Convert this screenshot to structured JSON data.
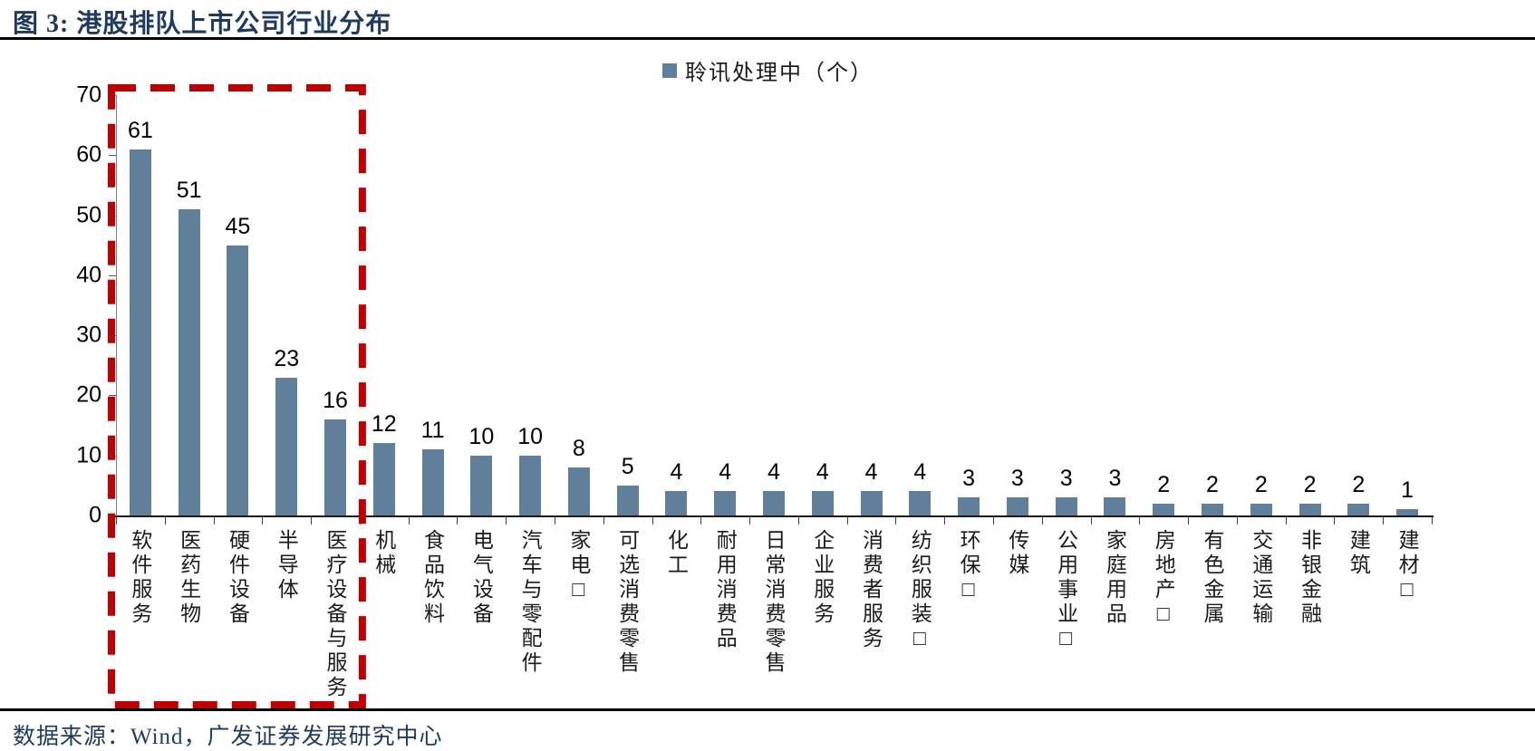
{
  "title": "图 3: 港股排队上市公司行业分布",
  "legend": {
    "label": "聆讯处理中（个）",
    "swatch_color": "#5f7f9a"
  },
  "source": "数据来源：Wind，广发证券发展研究中心",
  "chart_data": {
    "type": "bar",
    "title": "港股排队上市公司行业分布",
    "legend_entries": [
      "聆讯处理中（个）"
    ],
    "legend_position": "top-center",
    "grid": false,
    "categories": [
      "软件服务",
      "医药生物",
      "硬件设备",
      "半导体",
      "医疗设备与服务",
      "机械",
      "食品饮料",
      "电气设备",
      "汽车与零配件",
      "家电□",
      "可选消费零售",
      "化工",
      "耐用消费品",
      "日常消费零售",
      "企业服务",
      "消费者服务",
      "纺织服装□",
      "环保□",
      "传媒",
      "公用事业□",
      "家庭用品",
      "房地产□",
      "有色金属",
      "交通运输",
      "非银金融",
      "建筑",
      "建材□"
    ],
    "values": [
      61,
      51,
      45,
      23,
      16,
      12,
      11,
      10,
      10,
      8,
      5,
      4,
      4,
      4,
      4,
      4,
      4,
      3,
      3,
      3,
      3,
      2,
      2,
      2,
      2,
      2,
      1
    ],
    "xlabel": "",
    "ylabel": "",
    "ylim": [
      0,
      70
    ],
    "yticks": [
      0,
      10,
      20,
      30,
      40,
      50,
      60,
      70
    ],
    "bar_color": "#5f7f9a",
    "highlight_box": {
      "from_category": "软件服务",
      "to_category": "医疗设备与服务",
      "style": "dashed",
      "color": "#c00000"
    }
  }
}
